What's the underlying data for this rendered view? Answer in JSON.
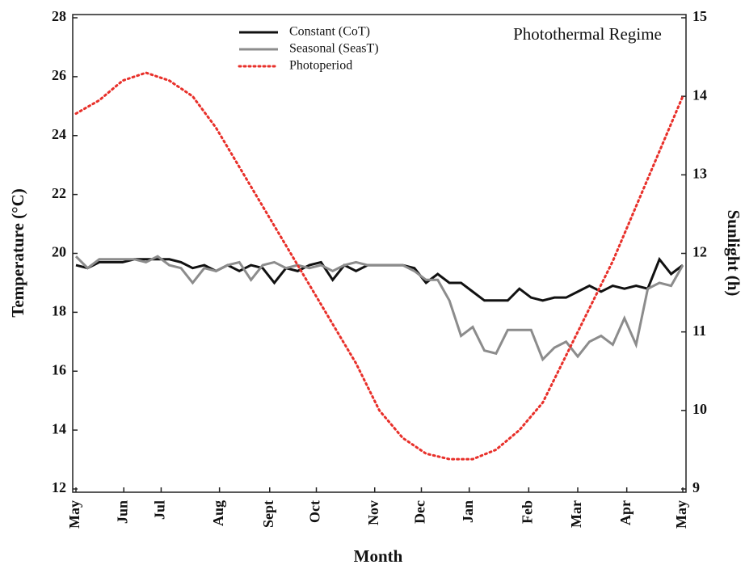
{
  "chart_data": {
    "type": "line",
    "title": "Photothermal Regime",
    "x_label": "Month",
    "y_label": "Temperature (°C)",
    "y2_label": "Sunlight (h)",
    "xlim": [
      0,
      52
    ],
    "xticks": [
      {
        "value": 0,
        "label": "May"
      },
      {
        "value": 4.1,
        "label": "Jun"
      },
      {
        "value": 7.3,
        "label": "Jul"
      },
      {
        "value": 12.3,
        "label": "Aug"
      },
      {
        "value": 16.6,
        "label": "Sept"
      },
      {
        "value": 20.6,
        "label": "Oct"
      },
      {
        "value": 25.6,
        "label": "Nov"
      },
      {
        "value": 29.6,
        "label": "Dec"
      },
      {
        "value": 33.7,
        "label": "Jan"
      },
      {
        "value": 38.8,
        "label": "Feb"
      },
      {
        "value": 43.0,
        "label": "Mar"
      },
      {
        "value": 47.2,
        "label": "Apr"
      },
      {
        "value": 52,
        "label": "May"
      }
    ],
    "ylim": [
      12,
      28
    ],
    "yticks": [
      12,
      14,
      16,
      18,
      20,
      22,
      24,
      26,
      28
    ],
    "y2lim": [
      9,
      15
    ],
    "y2ticks": [
      9,
      10,
      11,
      12,
      13,
      14,
      15
    ],
    "series": [
      {
        "name": "Constant (CoT)",
        "color": "#111111",
        "style": "solid",
        "x": [
          0,
          1,
          2,
          3,
          4,
          5,
          6,
          7,
          8,
          9,
          10,
          11,
          12,
          13,
          14,
          15,
          16,
          17,
          18,
          19,
          20,
          21,
          22,
          23,
          24,
          25,
          26,
          27,
          28,
          29,
          30,
          31,
          32,
          33,
          34,
          35,
          36,
          37,
          38,
          39,
          40,
          41,
          42,
          43,
          44,
          45,
          46,
          47,
          48,
          49,
          50,
          51,
          52
        ],
        "values": [
          19.6,
          19.5,
          19.7,
          19.7,
          19.7,
          19.8,
          19.8,
          19.8,
          19.8,
          19.7,
          19.5,
          19.6,
          19.4,
          19.6,
          19.4,
          19.6,
          19.5,
          19.0,
          19.5,
          19.4,
          19.6,
          19.7,
          19.1,
          19.6,
          19.4,
          19.6,
          19.6,
          19.6,
          19.6,
          19.5,
          19.0,
          19.3,
          19.0,
          19.0,
          18.7,
          18.4,
          18.4,
          18.4,
          18.8,
          18.5,
          18.4,
          18.5,
          18.5,
          18.7,
          18.9,
          18.7,
          18.9,
          18.8,
          18.9,
          18.8,
          19.8,
          19.3,
          19.6
        ]
      },
      {
        "name": "Seasonal (SeasT)",
        "color": "#8c8c8c",
        "style": "solid",
        "x": [
          0,
          1,
          2,
          3,
          4,
          5,
          6,
          7,
          8,
          9,
          10,
          11,
          12,
          13,
          14,
          15,
          16,
          17,
          18,
          19,
          20,
          21,
          22,
          23,
          24,
          25,
          26,
          27,
          28,
          29,
          30,
          31,
          32,
          33,
          34,
          35,
          36,
          37,
          38,
          39,
          40,
          41,
          42,
          43,
          44,
          45,
          46,
          47,
          48,
          49,
          50,
          51,
          52
        ],
        "values": [
          19.9,
          19.5,
          19.8,
          19.8,
          19.8,
          19.8,
          19.7,
          19.9,
          19.6,
          19.5,
          19.0,
          19.5,
          19.4,
          19.6,
          19.7,
          19.1,
          19.6,
          19.7,
          19.5,
          19.6,
          19.5,
          19.6,
          19.4,
          19.6,
          19.7,
          19.6,
          19.6,
          19.6,
          19.6,
          19.4,
          19.1,
          19.1,
          18.4,
          17.2,
          17.5,
          16.7,
          16.6,
          17.4,
          17.4,
          17.4,
          16.4,
          16.8,
          17.0,
          16.5,
          17.0,
          17.2,
          16.9,
          17.8,
          16.9,
          18.8,
          19.0,
          18.9,
          19.6
        ]
      },
      {
        "name": "Photoperiod",
        "color": "#e8302a",
        "style": "dotted",
        "axis": "y2",
        "x": [
          0,
          2,
          4,
          6,
          8,
          10,
          12,
          14,
          16,
          18,
          20,
          22,
          24,
          26,
          28,
          30,
          32,
          34,
          36,
          38,
          40,
          42,
          44,
          46,
          48,
          50,
          52
        ],
        "values": [
          13.78,
          13.95,
          14.2,
          14.3,
          14.2,
          14.0,
          13.6,
          13.1,
          12.6,
          12.1,
          11.6,
          11.1,
          10.6,
          10.0,
          9.65,
          9.45,
          9.38,
          9.38,
          9.5,
          9.75,
          10.1,
          10.7,
          11.3,
          11.9,
          12.6,
          13.3,
          14.0
        ]
      }
    ]
  }
}
